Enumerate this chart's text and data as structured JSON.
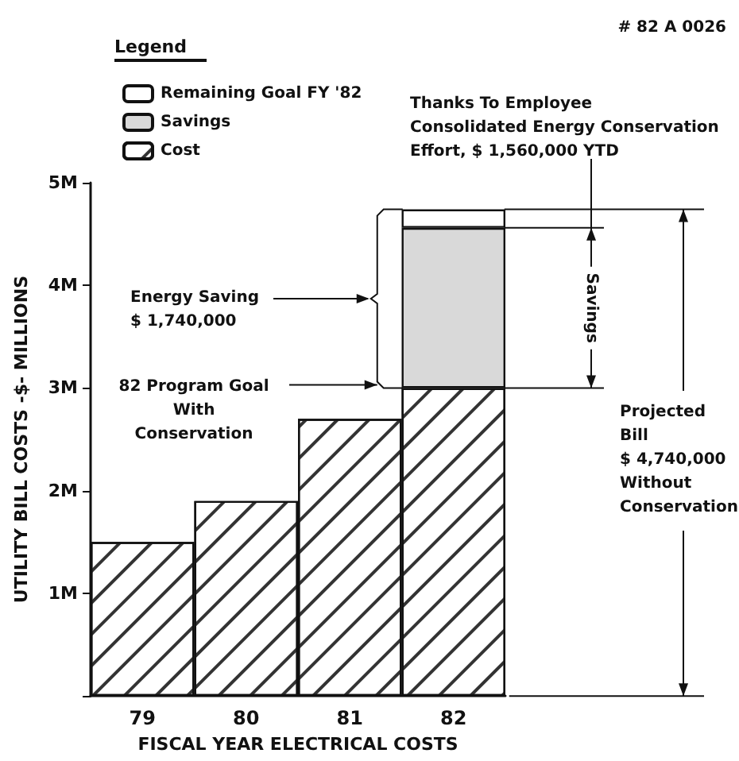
{
  "chart_data": {
    "type": "bar",
    "stacked": true,
    "categories": [
      "79",
      "80",
      "81",
      "82"
    ],
    "series": [
      {
        "name": "Cost",
        "color": "#ffffff",
        "values": [
          1.5,
          1.9,
          2.7,
          3.0
        ]
      },
      {
        "name": "Savings",
        "color": "#d9d9d9",
        "values": [
          null,
          null,
          null,
          1.56
        ]
      },
      {
        "name": "Remaining Goal FY '82",
        "color": "#ffffff",
        "values": [
          null,
          null,
          null,
          0.18
        ]
      }
    ],
    "legend_title": "Legend",
    "legend": "top left",
    "xlabel": "FISCAL YEAR ELECTRICAL COSTS",
    "ylabel": "UTILITY BILL COSTS -$- MILLIONS",
    "ylim": [
      0,
      5
    ],
    "yticks": [
      {
        "value": 0,
        "label": null
      },
      {
        "value": 1,
        "label": "1M"
      },
      {
        "value": 2,
        "label": "2M"
      },
      {
        "value": 3,
        "label": "3M"
      },
      {
        "value": 4,
        "label": "4M"
      },
      {
        "value": 5,
        "label": "5M"
      }
    ],
    "grid": false,
    "annotations": [
      "# 82 A 0026",
      "Thanks To Employee\nConsolidated Energy Conservation\nEffort, $ 1,560,000 YTD",
      "Energy Saving\n$ 1,740,000",
      "82 Program Goal\nWith\nConservation",
      "Savings",
      "Projected\nBill\n$ 4,740,000\nWithout\nConservation"
    ]
  }
}
